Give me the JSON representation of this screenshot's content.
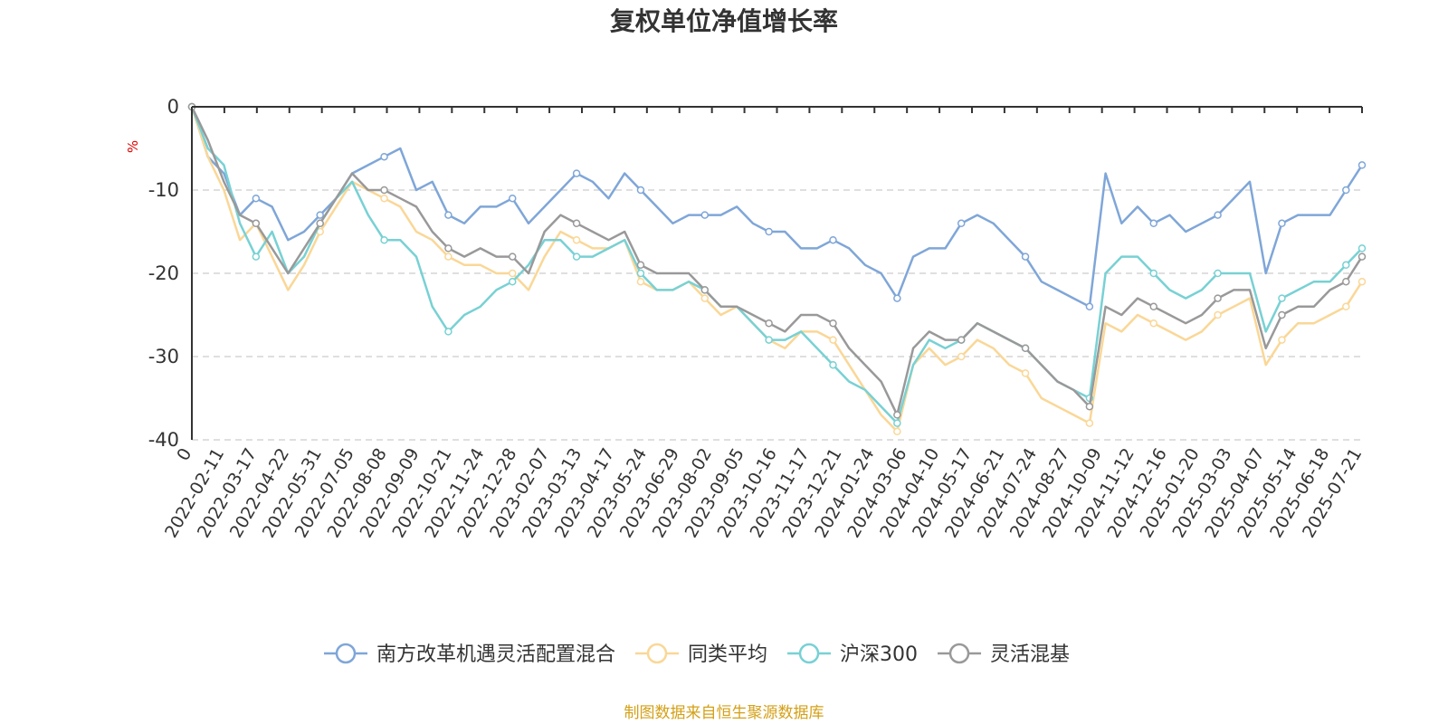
{
  "chart_data": {
    "type": "line",
    "title": "复权单位净值增长率",
    "ylabel": "%",
    "ylim": [
      -40,
      0
    ],
    "yticks": [
      0,
      -10,
      -20,
      -30,
      -40
    ],
    "grid": true,
    "legend_position": "bottom",
    "x_tick_labels": [
      "0",
      "2022-02-11",
      "2022-03-17",
      "2022-04-22",
      "2022-05-31",
      "2022-07-05",
      "2022-08-08",
      "2022-09-09",
      "2022-10-21",
      "2022-11-24",
      "2022-12-28",
      "2023-02-07",
      "2023-03-13",
      "2023-04-17",
      "2023-05-24",
      "2023-06-29",
      "2023-08-02",
      "2023-09-05",
      "2023-10-16",
      "2023-11-17",
      "2023-12-21",
      "2024-01-24",
      "2024-03-06",
      "2024-04-10",
      "2024-05-17",
      "2024-06-21",
      "2024-07-24",
      "2024-08-27",
      "2024-10-09",
      "2024-11-12",
      "2024-12-16",
      "2025-01-20",
      "2025-03-03",
      "2025-04-07",
      "2025-05-14",
      "2025-06-18",
      "2025-07-21"
    ],
    "series": [
      {
        "name": "南方改革机遇灵活配置混合",
        "color": "#7fa6d8",
        "values": [
          0,
          -6,
          -8,
          -13,
          -11,
          -12,
          -16,
          -15,
          -13,
          -11,
          -8,
          -7,
          -6,
          -5,
          -10,
          -9,
          -13,
          -14,
          -12,
          -12,
          -11,
          -14,
          -12,
          -10,
          -8,
          -9,
          -11,
          -8,
          -10,
          -12,
          -14,
          -13,
          -13,
          -13,
          -12,
          -14,
          -15,
          -15,
          -17,
          -17,
          -16,
          -17,
          -19,
          -20,
          -23,
          -18,
          -17,
          -17,
          -14,
          -13,
          -14,
          -16,
          -18,
          -21,
          -22,
          -23,
          -24,
          -8,
          -14,
          -12,
          -14,
          -13,
          -15,
          -14,
          -13,
          -11,
          -9,
          -20,
          -14,
          -13,
          -13,
          -13,
          -10,
          -7
        ]
      },
      {
        "name": "同类平均",
        "color": "#fad797",
        "values": [
          0,
          -6,
          -10,
          -16,
          -14,
          -18,
          -22,
          -19,
          -15,
          -12,
          -9,
          -10,
          -11,
          -12,
          -15,
          -16,
          -18,
          -19,
          -19,
          -20,
          -20,
          -22,
          -18,
          -15,
          -16,
          -17,
          -17,
          -16,
          -21,
          -22,
          -22,
          -21,
          -23,
          -25,
          -24,
          -26,
          -28,
          -29,
          -27,
          -27,
          -28,
          -31,
          -34,
          -37,
          -39,
          -31,
          -29,
          -31,
          -30,
          -28,
          -29,
          -31,
          -32,
          -35,
          -36,
          -37,
          -38,
          -26,
          -27,
          -25,
          -26,
          -27,
          -28,
          -27,
          -25,
          -24,
          -23,
          -31,
          -28,
          -26,
          -26,
          -25,
          -24,
          -21
        ]
      },
      {
        "name": "沪深300",
        "color": "#78d1d4",
        "values": [
          0,
          -5,
          -7,
          -14,
          -18,
          -15,
          -20,
          -18,
          -14,
          -11,
          -9,
          -13,
          -16,
          -16,
          -18,
          -24,
          -27,
          -25,
          -24,
          -22,
          -21,
          -19,
          -16,
          -16,
          -18,
          -18,
          -17,
          -16,
          -20,
          -22,
          -22,
          -21,
          -22,
          -24,
          -24,
          -26,
          -28,
          -28,
          -27,
          -29,
          -31,
          -33,
          -34,
          -36,
          -38,
          -31,
          -28,
          -29,
          -28,
          -26,
          -27,
          -28,
          -29,
          -31,
          -33,
          -34,
          -35,
          -20,
          -18,
          -18,
          -20,
          -22,
          -23,
          -22,
          -20,
          -20,
          -20,
          -27,
          -23,
          -22,
          -21,
          -21,
          -19,
          -17
        ]
      },
      {
        "name": "灵活混基",
        "color": "#999999",
        "values": [
          0,
          -4,
          -9,
          -13,
          -14,
          -17,
          -20,
          -17,
          -14,
          -11,
          -8,
          -10,
          -10,
          -11,
          -12,
          -15,
          -17,
          -18,
          -17,
          -18,
          -18,
          -20,
          -15,
          -13,
          -14,
          -15,
          -16,
          -15,
          -19,
          -20,
          -20,
          -20,
          -22,
          -24,
          -24,
          -25,
          -26,
          -27,
          -25,
          -25,
          -26,
          -29,
          -31,
          -33,
          -37,
          -29,
          -27,
          -28,
          -28,
          -26,
          -27,
          -28,
          -29,
          -31,
          -33,
          -34,
          -36,
          -24,
          -25,
          -23,
          -24,
          -25,
          -26,
          -25,
          -23,
          -22,
          -22,
          -29,
          -25,
          -24,
          -24,
          -22,
          -21,
          -18
        ]
      }
    ]
  },
  "footer": {
    "source_text": "制图数据来自恒生聚源数据库",
    "color": "#d4a017"
  }
}
